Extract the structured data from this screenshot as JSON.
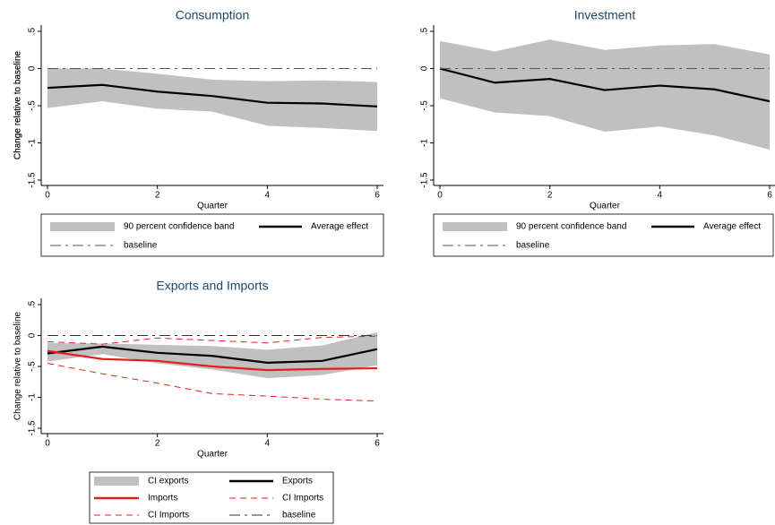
{
  "chart_data": [
    {
      "type": "line",
      "title": "Consumption",
      "xlabel": "Quarter",
      "ylabel": "Change relative to baseline",
      "x": [
        0,
        1,
        2,
        3,
        4,
        5,
        6
      ],
      "xlim": [
        0,
        6
      ],
      "xticks": [
        0,
        2,
        4,
        6
      ],
      "ylim": [
        -1.5,
        0.5
      ],
      "yticks": [
        {
          "value": 0.5,
          "label": ".5"
        },
        0,
        {
          "value": -0.5,
          "label": "-.5"
        },
        -1,
        -1.5
      ],
      "series": [
        {
          "name": "90 percent confidence band",
          "style": "band",
          "color": "#c0c0c0",
          "upper": [
            0,
            0,
            -0.07,
            -0.15,
            -0.17,
            -0.16,
            -0.18
          ],
          "lower": [
            -0.53,
            -0.44,
            -0.54,
            -0.58,
            -0.77,
            -0.8,
            -0.84
          ]
        },
        {
          "name": "Average effect",
          "style": "solid",
          "color": "#000000",
          "values": [
            -0.26,
            -0.22,
            -0.31,
            -0.37,
            -0.46,
            -0.47,
            -0.51
          ]
        },
        {
          "name": "baseline",
          "style": "longdash",
          "color": "#555555",
          "values": [
            0,
            0,
            0,
            0,
            0,
            0,
            0
          ]
        }
      ]
    },
    {
      "type": "line",
      "title": "Investment",
      "xlabel": "Quarter",
      "ylabel": "Change relative to baseline",
      "x": [
        0,
        1,
        2,
        3,
        4,
        5,
        6
      ],
      "xlim": [
        0,
        6
      ],
      "xticks": [
        0,
        2,
        4,
        6
      ],
      "ylim": [
        -1.5,
        0.5
      ],
      "yticks": [
        {
          "value": 0.5,
          "label": ".5"
        },
        0,
        {
          "value": -0.5,
          "label": "-.5"
        },
        -1,
        -1.5
      ],
      "series": [
        {
          "name": "90 percent confidence band",
          "style": "band",
          "color": "#c0c0c0",
          "upper": [
            0.37,
            0.23,
            0.39,
            0.25,
            0.31,
            0.33,
            0.19
          ],
          "lower": [
            -0.4,
            -0.59,
            -0.64,
            -0.85,
            -0.78,
            -0.9,
            -1.09
          ]
        },
        {
          "name": "Average effect",
          "style": "solid",
          "color": "#000000",
          "values": [
            0,
            -0.19,
            -0.14,
            -0.29,
            -0.23,
            -0.28,
            -0.44
          ]
        },
        {
          "name": "baseline",
          "style": "longdash",
          "color": "#555555",
          "values": [
            0,
            0,
            0,
            0,
            0,
            0,
            0
          ]
        }
      ]
    },
    {
      "type": "line",
      "title": "Exports and Imports",
      "xlabel": "Quarter",
      "ylabel": "Change relative to baseline",
      "x": [
        0,
        1,
        2,
        3,
        4,
        5,
        6
      ],
      "xlim": [
        0,
        6
      ],
      "xticks": [
        0,
        2,
        4,
        6
      ],
      "ylim": [
        -1.5,
        0.5
      ],
      "yticks": [
        {
          "value": 0.5,
          "label": ".5"
        },
        0,
        {
          "value": -0.5,
          "label": "-.5"
        },
        -1,
        -1.5
      ],
      "series": [
        {
          "name": "CI exports",
          "style": "band",
          "color": "#c0c0c0",
          "upper": [
            -0.12,
            -0.13,
            -0.15,
            -0.17,
            -0.23,
            -0.16,
            0.05
          ],
          "lower": [
            -0.42,
            -0.3,
            -0.45,
            -0.55,
            -0.69,
            -0.64,
            -0.48
          ]
        },
        {
          "name": "Exports",
          "style": "solid",
          "color": "#000000",
          "values": [
            -0.29,
            -0.18,
            -0.28,
            -0.33,
            -0.44,
            -0.41,
            -0.22
          ]
        },
        {
          "name": "Imports",
          "style": "solid",
          "color": "#e3211c",
          "values": [
            -0.25,
            -0.38,
            -0.41,
            -0.5,
            -0.56,
            -0.54,
            -0.53
          ]
        },
        {
          "name": "CI Imports",
          "style": "dash",
          "color": "#e3211c",
          "values": [
            -0.1,
            -0.14,
            -0.04,
            -0.08,
            -0.12,
            -0.03,
            -0.01
          ]
        },
        {
          "name": "CI Imports",
          "style": "dash",
          "color": "#e3211c",
          "values": [
            -0.45,
            -0.62,
            -0.77,
            -0.94,
            -0.98,
            -1.03,
            -1.06
          ]
        },
        {
          "name": "baseline",
          "style": "longdash",
          "color": "#333333",
          "values": [
            0,
            0,
            0,
            0,
            0,
            0,
            0
          ]
        }
      ]
    }
  ]
}
